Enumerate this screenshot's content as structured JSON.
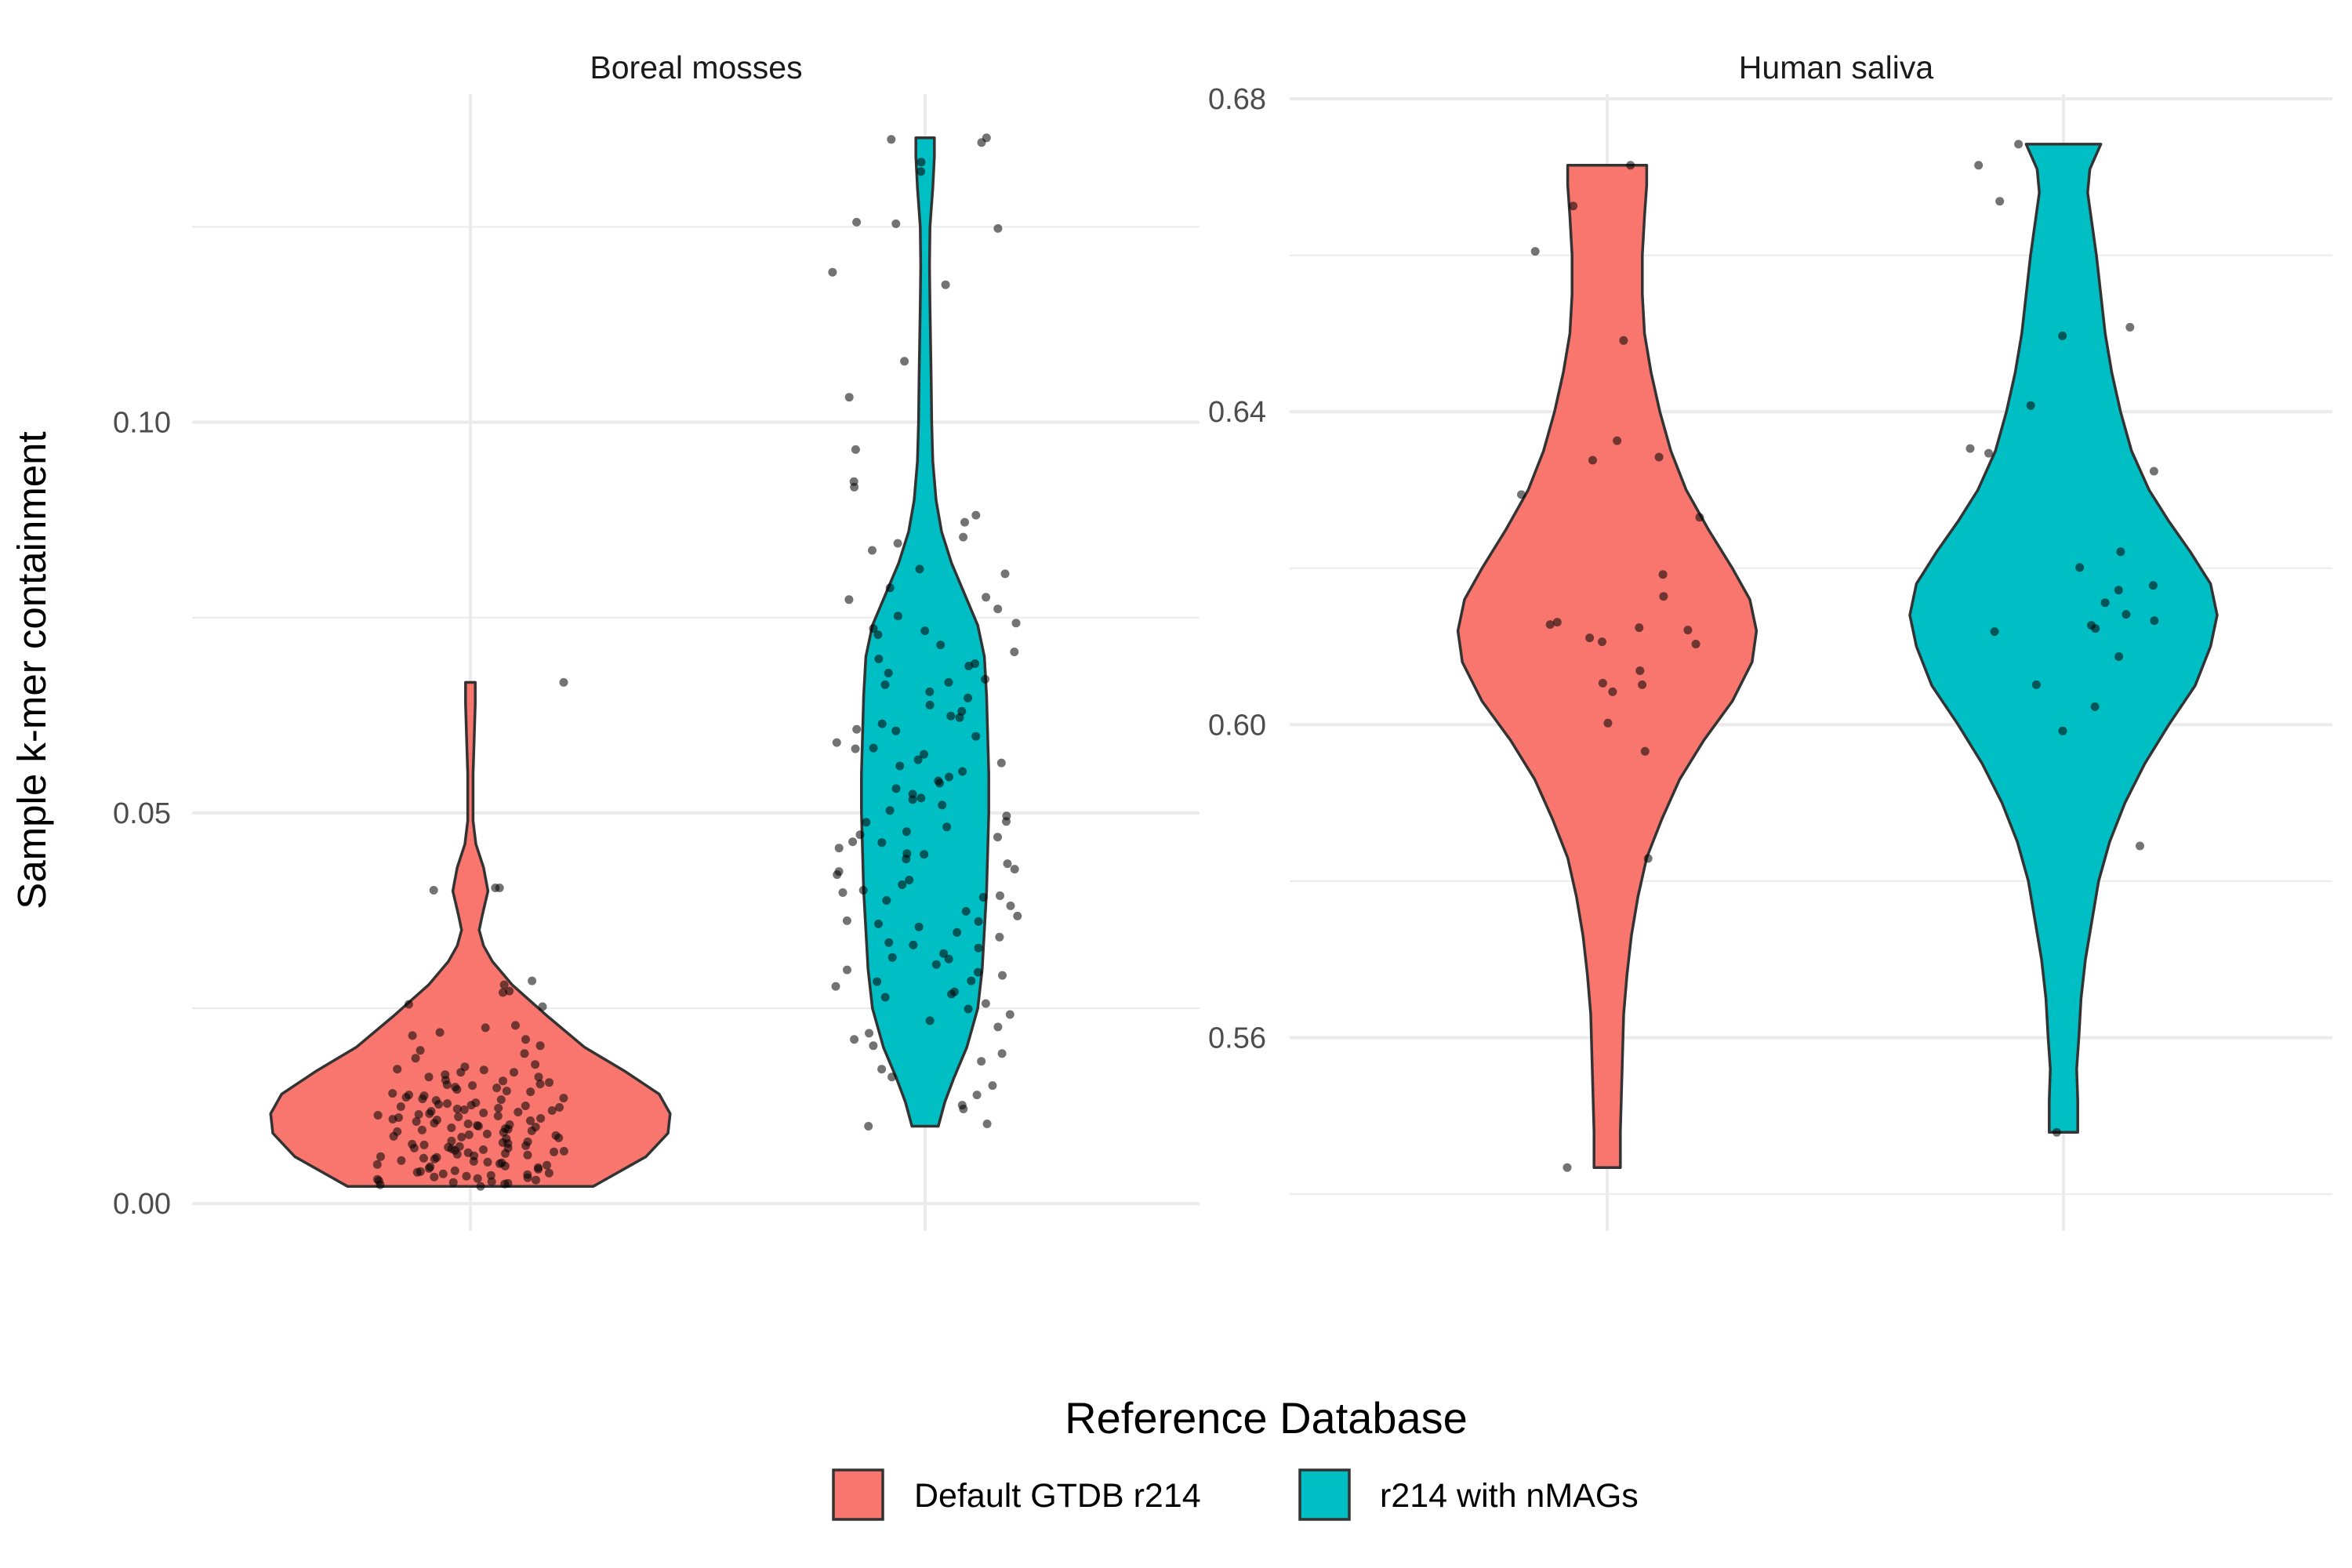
{
  "chart_data": {
    "type": "violin",
    "ylabel": "Sample k-mer containment",
    "legend": {
      "title": "Reference Database",
      "position": "bottom",
      "entries": [
        {
          "label": "Default GTDB r214",
          "color": "#F8766D"
        },
        {
          "label": "r214 with nMAGs",
          "color": "#00BFC4"
        }
      ]
    },
    "grid": true,
    "facets": [
      {
        "title": "Boreal mosses",
        "ylim": [
          -0.0035,
          0.142
        ],
        "yticks": [
          0.0,
          0.05,
          0.1
        ],
        "ytick_labels": [
          "0.00",
          "0.05",
          "0.10"
        ],
        "series": [
          {
            "name": "Default GTDB r214",
            "color": "#F8766D",
            "range": [
              0.0022,
              0.0667
            ],
            "density": [
              [
                0.0022,
                0.56
              ],
              [
                0.006,
                0.8
              ],
              [
                0.009,
                0.9
              ],
              [
                0.0115,
                0.91
              ],
              [
                0.014,
                0.86
              ],
              [
                0.017,
                0.7
              ],
              [
                0.02,
                0.52
              ],
              [
                0.024,
                0.35
              ],
              [
                0.028,
                0.19
              ],
              [
                0.031,
                0.1
              ],
              [
                0.033,
                0.06
              ],
              [
                0.035,
                0.04
              ],
              [
                0.037,
                0.055
              ],
              [
                0.04,
                0.08
              ],
              [
                0.043,
                0.06
              ],
              [
                0.046,
                0.025
              ],
              [
                0.049,
                0.012
              ],
              [
                0.055,
                0.012
              ],
              [
                0.06,
                0.018
              ],
              [
                0.064,
                0.022
              ],
              [
                0.0667,
                0.022
              ]
            ],
            "points": [
              0.0404,
              0.0401,
              0.0404,
              0.0667,
              0.028,
              0.027,
              0.0255,
              0.0252,
              0.0272,
              0.0285,
              0.0228,
              0.0219,
              0.021,
              0.0215,
              0.0225,
              0.0196,
              0.0186,
              0.0192,
              0.0202,
              0.0178,
              0.0172,
              0.0175,
              0.0168,
              0.0165,
              0.0162,
              0.0158,
              0.0155,
              0.0153,
              0.0149,
              0.0146,
              0.0143,
              0.0139,
              0.0136,
              0.0132,
              0.0128,
              0.0126,
              0.0123,
              0.012,
              0.0117,
              0.0114,
              0.0111,
              0.0109,
              0.0106,
              0.0103,
              0.01,
              0.0098,
              0.0095,
              0.0092,
              0.0089,
              0.0086,
              0.0083,
              0.008,
              0.0077,
              0.0075,
              0.0072,
              0.007,
              0.0068,
              0.0066,
              0.0063,
              0.006,
              0.0058,
              0.0055,
              0.0052,
              0.005,
              0.0047,
              0.0045,
              0.0042,
              0.004,
              0.0037,
              0.0035,
              0.0032,
              0.003,
              0.0028,
              0.0026,
              0.0024,
              0.0022,
              0.0168,
              0.0151,
              0.0133,
              0.0118,
              0.0102,
              0.0087,
              0.0071,
              0.0061,
              0.0049,
              0.0036,
              0.0029,
              0.0148,
              0.0122,
              0.0097,
              0.0079,
              0.0064,
              0.0115,
              0.0125,
              0.0135,
              0.0088,
              0.0076,
              0.0069,
              0.0157,
              0.0162,
              0.0171,
              0.0144,
              0.0141,
              0.0119,
              0.0108,
              0.0094,
              0.0085,
              0.0062,
              0.0057,
              0.0044,
              0.0041,
              0.0033,
              0.0027,
              0.0121,
              0.0113,
              0.0107,
              0.0101,
              0.0093,
              0.0074,
              0.0067,
              0.0053,
              0.0046,
              0.0034,
              0.0031,
              0.0138,
              0.0129,
              0.0112,
              0.0096,
              0.0078,
              0.0065,
              0.0051,
              0.0039,
              0.0025,
              0.0124,
              0.0116,
              0.0105,
              0.0091,
              0.0073,
              0.0059,
              0.0048,
              0.0038,
              0.0152,
              0.0134,
              0.0127,
              0.011,
              0.0099,
              0.0084,
              0.0071,
              0.0054
            ]
          },
          {
            "name": "r214 with nMAGs",
            "color": "#00BFC4",
            "range": [
              0.0099,
              0.1364
            ],
            "density": [
              [
                0.0099,
                0.06
              ],
              [
                0.013,
                0.09
              ],
              [
                0.016,
                0.13
              ],
              [
                0.02,
                0.19
              ],
              [
                0.025,
                0.24
              ],
              [
                0.03,
                0.26
              ],
              [
                0.035,
                0.27
              ],
              [
                0.04,
                0.28
              ],
              [
                0.045,
                0.285
              ],
              [
                0.05,
                0.29
              ],
              [
                0.055,
                0.29
              ],
              [
                0.06,
                0.285
              ],
              [
                0.065,
                0.28
              ],
              [
                0.07,
                0.27
              ],
              [
                0.074,
                0.24
              ],
              [
                0.078,
                0.18
              ],
              [
                0.082,
                0.12
              ],
              [
                0.086,
                0.075
              ],
              [
                0.09,
                0.05
              ],
              [
                0.095,
                0.035
              ],
              [
                0.1,
                0.03
              ],
              [
                0.105,
                0.028
              ],
              [
                0.11,
                0.025
              ],
              [
                0.115,
                0.022
              ],
              [
                0.12,
                0.02
              ],
              [
                0.125,
                0.022
              ],
              [
                0.13,
                0.035
              ],
              [
                0.134,
                0.042
              ],
              [
                0.1364,
                0.042
              ]
            ],
            "points": [
              0.1364,
              0.1358,
              0.1362,
              0.1321,
              0.1333,
              0.1256,
              0.1248,
              0.1254,
              0.1192,
              0.1176,
              0.1078,
              0.1032,
              0.0965,
              0.0924,
              0.0917,
              0.0881,
              0.0872,
              0.0853,
              0.0845,
              0.0836,
              0.0812,
              0.0806,
              0.0788,
              0.0773,
              0.0761,
              0.0752,
              0.0743,
              0.0736,
              0.0728,
              0.0715,
              0.0706,
              0.0697,
              0.0688,
              0.0679,
              0.0671,
              0.0664,
              0.0655,
              0.0647,
              0.0638,
              0.063,
              0.0622,
              0.0614,
              0.0607,
              0.0598,
              0.059,
              0.0582,
              0.0575,
              0.0568,
              0.056,
              0.0553,
              0.0546,
              0.0538,
              0.0531,
              0.0524,
              0.0517,
              0.051,
              0.0503,
              0.0496,
              0.0489,
              0.0482,
              0.0476,
              0.0469,
              0.0462,
              0.0455,
              0.0448,
              0.0441,
              0.0435,
              0.0428,
              0.0421,
              0.0414,
              0.0408,
              0.0401,
              0.0394,
              0.0388,
              0.0381,
              0.0374,
              0.0368,
              0.0361,
              0.0354,
              0.0347,
              0.0341,
              0.0334,
              0.0327,
              0.032,
              0.0313,
              0.0306,
              0.0299,
              0.0292,
              0.0285,
              0.0278,
              0.0271,
              0.0264,
              0.0256,
              0.0249,
              0.0242,
              0.0234,
              0.0226,
              0.0218,
              0.021,
              0.0202,
              0.0192,
              0.0182,
              0.0172,
              0.0162,
              0.0151,
              0.0139,
              0.0126,
              0.0121,
              0.0099,
              0.0102,
              0.0776,
              0.0691,
              0.0583,
              0.0472,
              0.0362,
              0.0284,
              0.0605,
              0.0519,
              0.0447,
              0.0398,
              0.0315,
              0.0667,
              0.0564,
              0.0488,
              0.0425,
              0.0358,
              0.0296,
              0.0733,
              0.0624,
              0.0541,
              0.0463,
              0.0392,
              0.0331,
              0.0268
            ]
          }
        ]
      },
      {
        "title": "Human saliva",
        "ylim": [
          0.5353,
          0.6806
        ],
        "yticks": [
          0.56,
          0.6,
          0.64,
          0.68
        ],
        "ytick_labels": [
          "0.56",
          "0.60",
          "0.64",
          "0.68"
        ],
        "series": [
          {
            "name": "Default GTDB r214",
            "color": "#F8766D",
            "range": [
              0.5434,
              0.6715
            ],
            "density": [
              [
                0.5434,
                0.06
              ],
              [
                0.548,
                0.06
              ],
              [
                0.553,
                0.065
              ],
              [
                0.558,
                0.07
              ],
              [
                0.563,
                0.075
              ],
              [
                0.568,
                0.09
              ],
              [
                0.573,
                0.11
              ],
              [
                0.578,
                0.14
              ],
              [
                0.583,
                0.18
              ],
              [
                0.588,
                0.25
              ],
              [
                0.593,
                0.33
              ],
              [
                0.598,
                0.44
              ],
              [
                0.603,
                0.57
              ],
              [
                0.608,
                0.66
              ],
              [
                0.612,
                0.68
              ],
              [
                0.616,
                0.65
              ],
              [
                0.62,
                0.57
              ],
              [
                0.625,
                0.46
              ],
              [
                0.63,
                0.36
              ],
              [
                0.635,
                0.29
              ],
              [
                0.64,
                0.24
              ],
              [
                0.645,
                0.2
              ],
              [
                0.65,
                0.17
              ],
              [
                0.655,
                0.16
              ],
              [
                0.66,
                0.16
              ],
              [
                0.665,
                0.17
              ],
              [
                0.669,
                0.18
              ],
              [
                0.6715,
                0.18
              ]
            ],
            "points": [
              0.6715,
              0.6663,
              0.6605,
              0.6491,
              0.6363,
              0.6342,
              0.6338,
              0.6294,
              0.6265,
              0.6192,
              0.6164,
              0.6131,
              0.6128,
              0.6124,
              0.6121,
              0.6111,
              0.6106,
              0.6103,
              0.6069,
              0.6053,
              0.6051,
              0.6042,
              0.6002,
              0.5966,
              0.5829,
              0.5434
            ]
          },
          {
            "name": "r214 with nMAGs",
            "color": "#00BFC4",
            "range": [
              0.5479,
              0.6742
            ],
            "density": [
              [
                0.5479,
                0.065
              ],
              [
                0.552,
                0.065
              ],
              [
                0.556,
                0.06
              ],
              [
                0.56,
                0.07
              ],
              [
                0.565,
                0.08
              ],
              [
                0.57,
                0.1
              ],
              [
                0.575,
                0.13
              ],
              [
                0.58,
                0.16
              ],
              [
                0.585,
                0.21
              ],
              [
                0.59,
                0.28
              ],
              [
                0.595,
                0.37
              ],
              [
                0.6,
                0.48
              ],
              [
                0.605,
                0.6
              ],
              [
                0.61,
                0.67
              ],
              [
                0.614,
                0.7
              ],
              [
                0.618,
                0.67
              ],
              [
                0.622,
                0.58
              ],
              [
                0.626,
                0.48
              ],
              [
                0.63,
                0.39
              ],
              [
                0.635,
                0.31
              ],
              [
                0.64,
                0.26
              ],
              [
                0.645,
                0.22
              ],
              [
                0.65,
                0.19
              ],
              [
                0.655,
                0.17
              ],
              [
                0.66,
                0.15
              ],
              [
                0.664,
                0.13
              ],
              [
                0.668,
                0.11
              ],
              [
                0.671,
                0.12
              ],
              [
                0.6742,
                0.17
              ]
            ],
            "points": [
              0.6742,
              0.6715,
              0.6669,
              0.6508,
              0.6497,
              0.6408,
              0.6353,
              0.6347,
              0.6324,
              0.6221,
              0.6201,
              0.6178,
              0.6172,
              0.6156,
              0.6141,
              0.6133,
              0.6127,
              0.6123,
              0.6119,
              0.6087,
              0.6051,
              0.6023,
              0.5992,
              0.5845,
              0.5479
            ]
          }
        ]
      }
    ]
  }
}
